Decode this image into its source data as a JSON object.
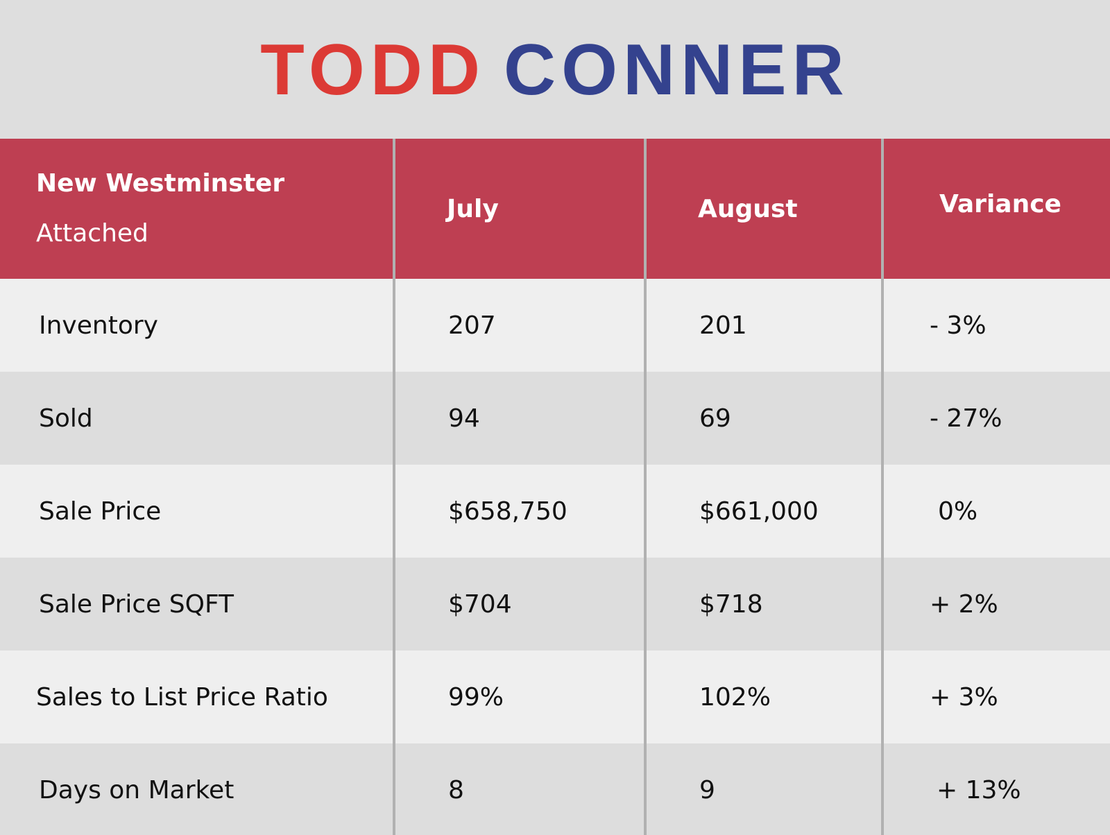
{
  "brand": {
    "first": "TODD",
    "last": "CONNER",
    "first_color": "#dc3a35",
    "last_color": "#34428e"
  },
  "table": {
    "header": {
      "area": "New Westminster",
      "type": "Attached",
      "col1": "July",
      "col2": "August",
      "col3": "Variance",
      "color": "#be3f52"
    },
    "rows": [
      {
        "label": "Inventory",
        "july": "207",
        "august": "201",
        "variance": "- 3%"
      },
      {
        "label": "Sold",
        "july": "94",
        "august": "69",
        "variance": "- 27%"
      },
      {
        "label": "Sale Price",
        "july": "$658,750",
        "august": "$661,000",
        "variance": "0%"
      },
      {
        "label": "Sale Price SQFT",
        "july": "$704",
        "august": "$718",
        "variance": "+ 2%"
      },
      {
        "label": "Sales to List Price Ratio",
        "july": "99%",
        "august": "102%",
        "variance": "+ 3%"
      },
      {
        "label": "Days on Market",
        "july": "8",
        "august": "9",
        "variance": "+ 13%"
      }
    ]
  }
}
